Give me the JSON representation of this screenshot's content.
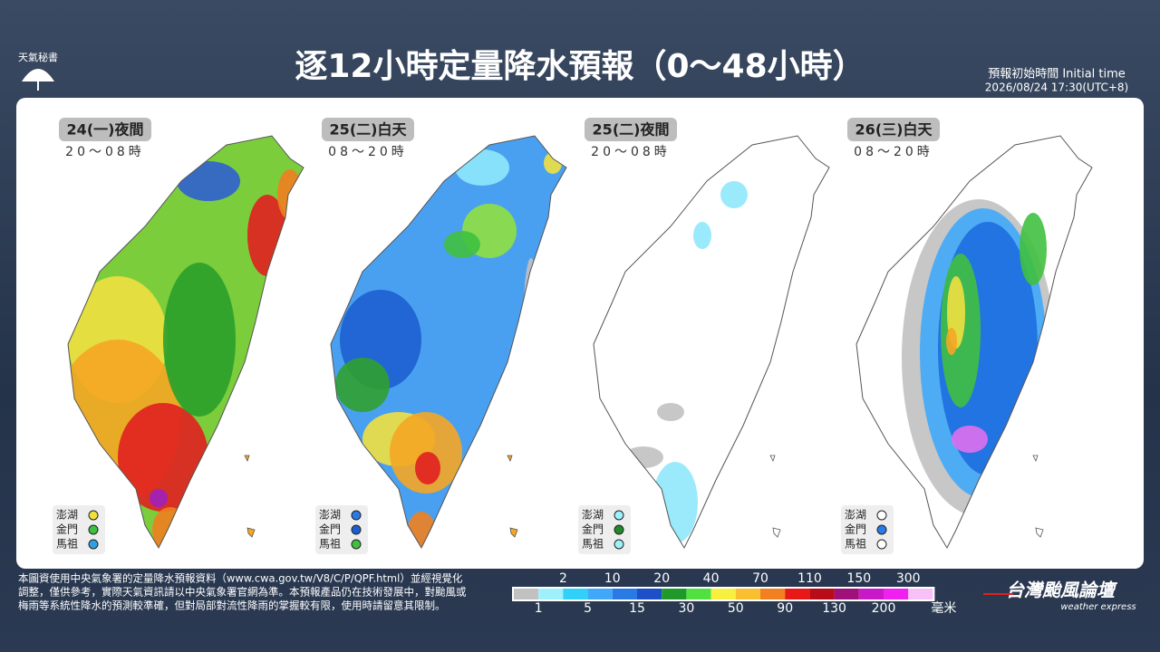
{
  "header": {
    "logo": "天氣秘書",
    "title": "逐12小時定量降水預報（0～48小時）",
    "init_label": "預報初始時間 Initial time",
    "init_time": "2026/08/24  17:30(UTC+8)"
  },
  "panels": [
    {
      "day": "24(一)夜間",
      "hours": "20～08時",
      "islands": [
        {
          "name": "澎湖",
          "color": "#f0e040"
        },
        {
          "name": "金門",
          "color": "#40c040"
        },
        {
          "name": "馬祖",
          "color": "#30a0e0"
        }
      ]
    },
    {
      "day": "25(二)白天",
      "hours": "08～20時",
      "islands": [
        {
          "name": "澎湖",
          "color": "#2a7ae6"
        },
        {
          "name": "金門",
          "color": "#1d5fd0"
        },
        {
          "name": "馬祖",
          "color": "#40c040"
        }
      ]
    },
    {
      "day": "25(二)夜間",
      "hours": "20～08時",
      "islands": [
        {
          "name": "澎湖",
          "color": "#9ef0fc"
        },
        {
          "name": "金門",
          "color": "#1f8a2a"
        },
        {
          "name": "馬祖",
          "color": "#9ef0fc"
        }
      ]
    },
    {
      "day": "26(三)白天",
      "hours": "08～20時",
      "islands": [
        {
          "name": "澎湖",
          "color": "#ffffff"
        },
        {
          "name": "金門",
          "color": "#2a7ae6"
        },
        {
          "name": "馬祖",
          "color": "#ffffff"
        }
      ]
    }
  ],
  "footnote": [
    "本圖資使用中央氣象署的定量降水預報資料（www.cwa.gov.tw/V8/C/P/QPF.html）並經視覺化",
    "調整，僅供參考，實際天氣資訊請以中央氣象署官網為準。本預報產品仍在技術發展中，對颱風或",
    "梅雨等系統性降水的預測較準確，但對局部對流性降雨的掌握較有限，使用時請留意其限制。"
  ],
  "legend": {
    "colors": [
      "#c1c1c1",
      "#9ef0fc",
      "#30d0f8",
      "#40a8f8",
      "#2a7ae6",
      "#1d50c8",
      "#1f9a2a",
      "#50e040",
      "#f8f040",
      "#f8c030",
      "#f08020",
      "#e81818",
      "#b80c18",
      "#a0107a",
      "#c818c8",
      "#f020f0",
      "#f8c0f8"
    ],
    "top_labels": [
      "2",
      "10",
      "20",
      "40",
      "70",
      "110",
      "150",
      "300"
    ],
    "bottom_labels": [
      "1",
      "5",
      "15",
      "30",
      "50",
      "90",
      "130",
      "200"
    ],
    "unit": "毫米"
  },
  "brand": {
    "name": "台灣颱風論壇",
    "tagline": "weather express"
  }
}
